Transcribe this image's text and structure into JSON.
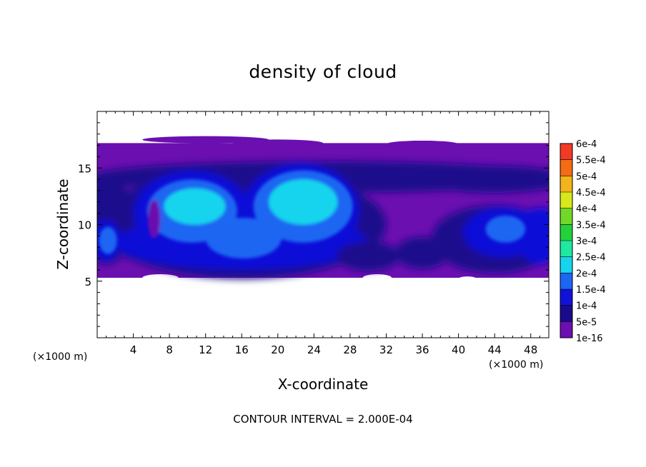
{
  "chart_data": {
    "type": "heatmap",
    "title": "density of cloud",
    "xlabel": "X-coordinate",
    "ylabel": "Z-coordinate",
    "x_unit": "(×1000 m)",
    "y_unit": "(×1000 m)",
    "note": "CONTOUR INTERVAL = 2.000E-04",
    "xlim": [
      0,
      50
    ],
    "ylim": [
      0,
      20
    ],
    "x_ticks": [
      4,
      8,
      12,
      16,
      20,
      24,
      28,
      32,
      36,
      40,
      44,
      48
    ],
    "y_ticks": [
      5,
      10,
      15
    ],
    "colorbar": {
      "labels": [
        "1e-16",
        "5e-5",
        "1e-4",
        "1.5e-4",
        "2e-4",
        "2.5e-4",
        "3e-4",
        "3.5e-4",
        "4e-4",
        "4.5e-4",
        "5e-4",
        "5.5e-4",
        "6e-4"
      ],
      "colors": [
        "#6b0fb0",
        "#1a0a8c",
        "#1111d8",
        "#1c66f2",
        "#16d4ee",
        "#1fe8a0",
        "#22d23c",
        "#72d828",
        "#d8e81c",
        "#f2b41a",
        "#f46c14",
        "#f23a26",
        "#f08088"
      ]
    },
    "fields": [
      {
        "band_z": [
          5.3,
          17.2
        ],
        "value": "1e-16"
      },
      {
        "region": "upper blue layer",
        "z_range": [
          13.5,
          15.5
        ],
        "value": "5e-5"
      },
      {
        "blob": "cell-1",
        "center": [
          10.5,
          11.2
        ],
        "peak": "2e-4"
      },
      {
        "blob": "cell-2",
        "center": [
          22.5,
          11.5
        ],
        "peak": "2e-4"
      },
      {
        "blob": "cell-3",
        "center": [
          16,
          8.8
        ],
        "peak": "1.5e-4"
      },
      {
        "blob": "cell-4",
        "center": [
          45,
          9.5
        ],
        "peak": "1.5e-4"
      },
      {
        "blob": "cell-5",
        "center": [
          1,
          8.5
        ],
        "peak": "1.5e-4"
      }
    ]
  }
}
